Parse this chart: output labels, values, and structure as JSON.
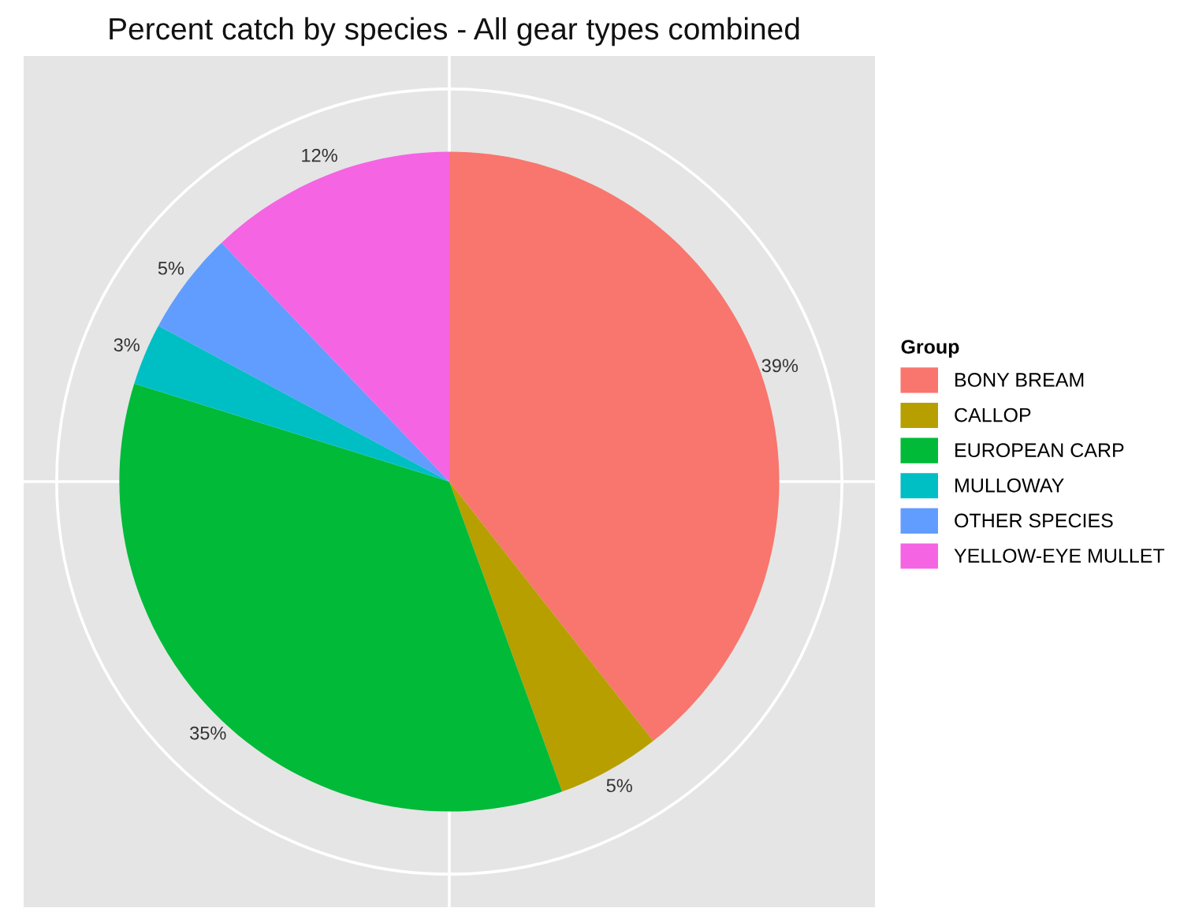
{
  "chart_data": {
    "type": "pie",
    "title": "Percent catch by species - All gear types combined",
    "legend_title": "Group",
    "categories": [
      "BONY BREAM",
      "CALLOP",
      "EUROPEAN CARP",
      "MULLOWAY",
      "OTHER SPECIES",
      "YELLOW-EYE MULLET"
    ],
    "values": [
      39,
      5,
      35,
      3,
      5,
      12
    ],
    "value_labels": [
      "39%",
      "5%",
      "35%",
      "3%",
      "5%",
      "12%"
    ],
    "colors": [
      "#f8766d",
      "#b79f00",
      "#00ba38",
      "#00bfc4",
      "#619cff",
      "#f564e3"
    ],
    "grid": true,
    "legend": "right"
  }
}
